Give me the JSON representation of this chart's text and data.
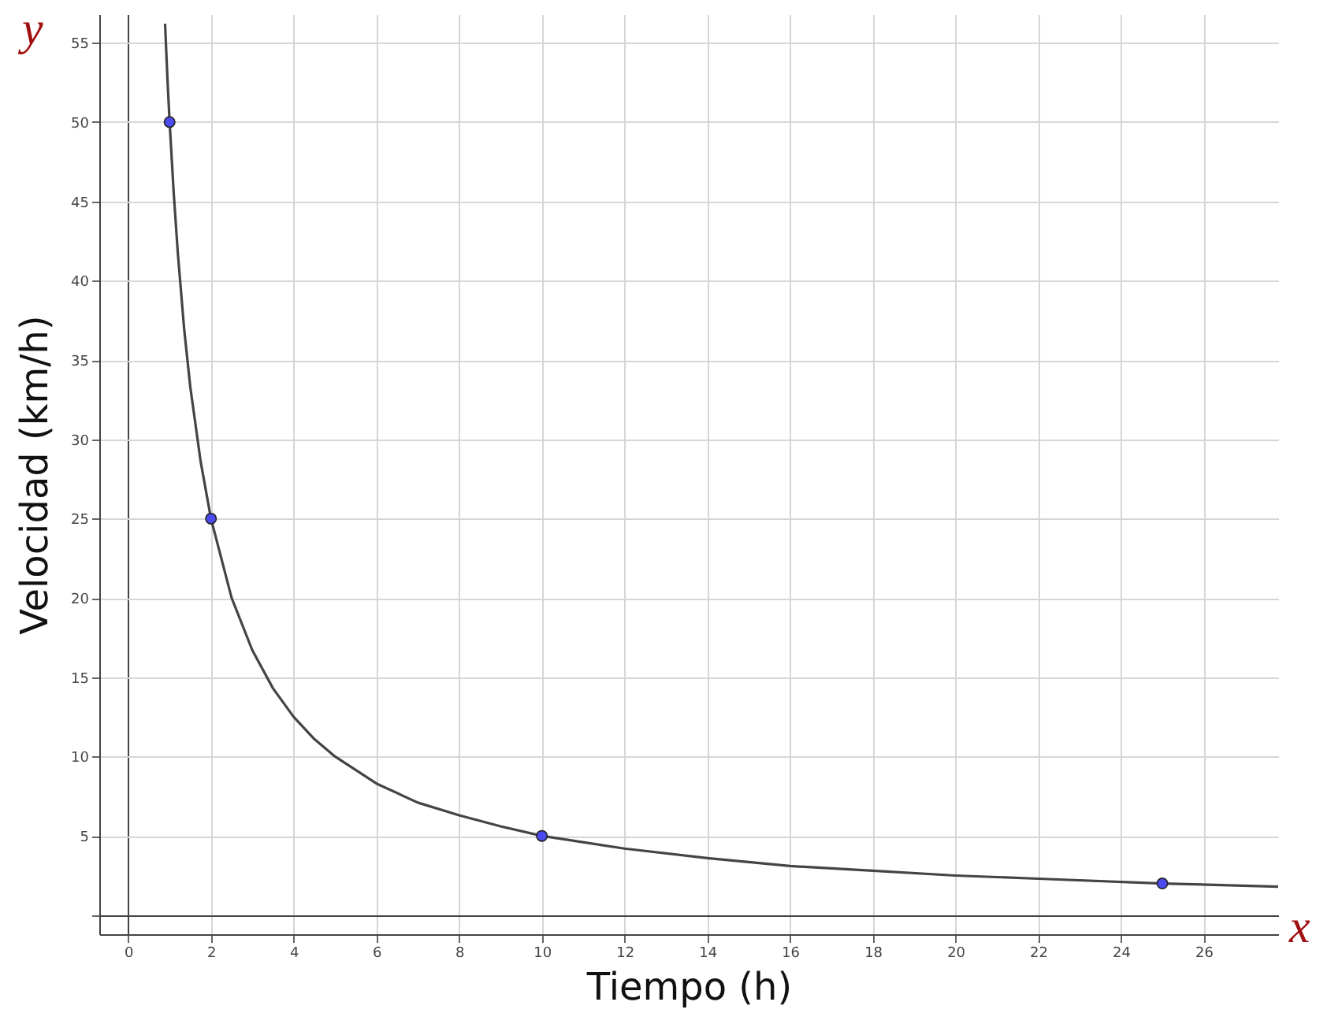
{
  "chart_data": {
    "type": "line",
    "xlabel": "Tiempo (h)",
    "ylabel": "Velocidad (km/h)",
    "annotations": [
      "y",
      "x"
    ],
    "xlim": [
      -0.7,
      27.8
    ],
    "ylim": [
      -1.2,
      56.8
    ],
    "xticks": [
      0,
      2,
      4,
      6,
      8,
      10,
      12,
      14,
      16,
      18,
      20,
      22,
      24,
      26
    ],
    "yticks": [
      {
        "value": 0,
        "label": null
      },
      5,
      10,
      15,
      20,
      25,
      30,
      35,
      40,
      45,
      50,
      55
    ],
    "grid": true,
    "series": [
      {
        "color": "#444444",
        "marker": "none",
        "x": [
          0.89,
          0.95,
          1,
          1.1,
          1.2,
          1.35,
          1.5,
          1.75,
          2,
          2.5,
          3,
          3.5,
          4,
          4.5,
          5,
          6,
          7,
          8,
          9,
          10,
          12,
          14,
          16,
          18,
          20,
          22,
          25,
          27.8
        ],
        "values": [
          56.2,
          52.6,
          50,
          45.5,
          41.7,
          37,
          33.3,
          28.6,
          25,
          20,
          16.7,
          14.3,
          12.5,
          11.1,
          10,
          8.3,
          7.1,
          6.3,
          5.6,
          5,
          4.2,
          3.6,
          3.1,
          2.8,
          2.5,
          2.3,
          2,
          1.8
        ]
      },
      {
        "type": "scatter",
        "color": "#4b4bf0",
        "marker": "circle",
        "x": [
          1,
          2,
          10,
          25
        ],
        "values": [
          50,
          25,
          5,
          2
        ]
      }
    ]
  }
}
